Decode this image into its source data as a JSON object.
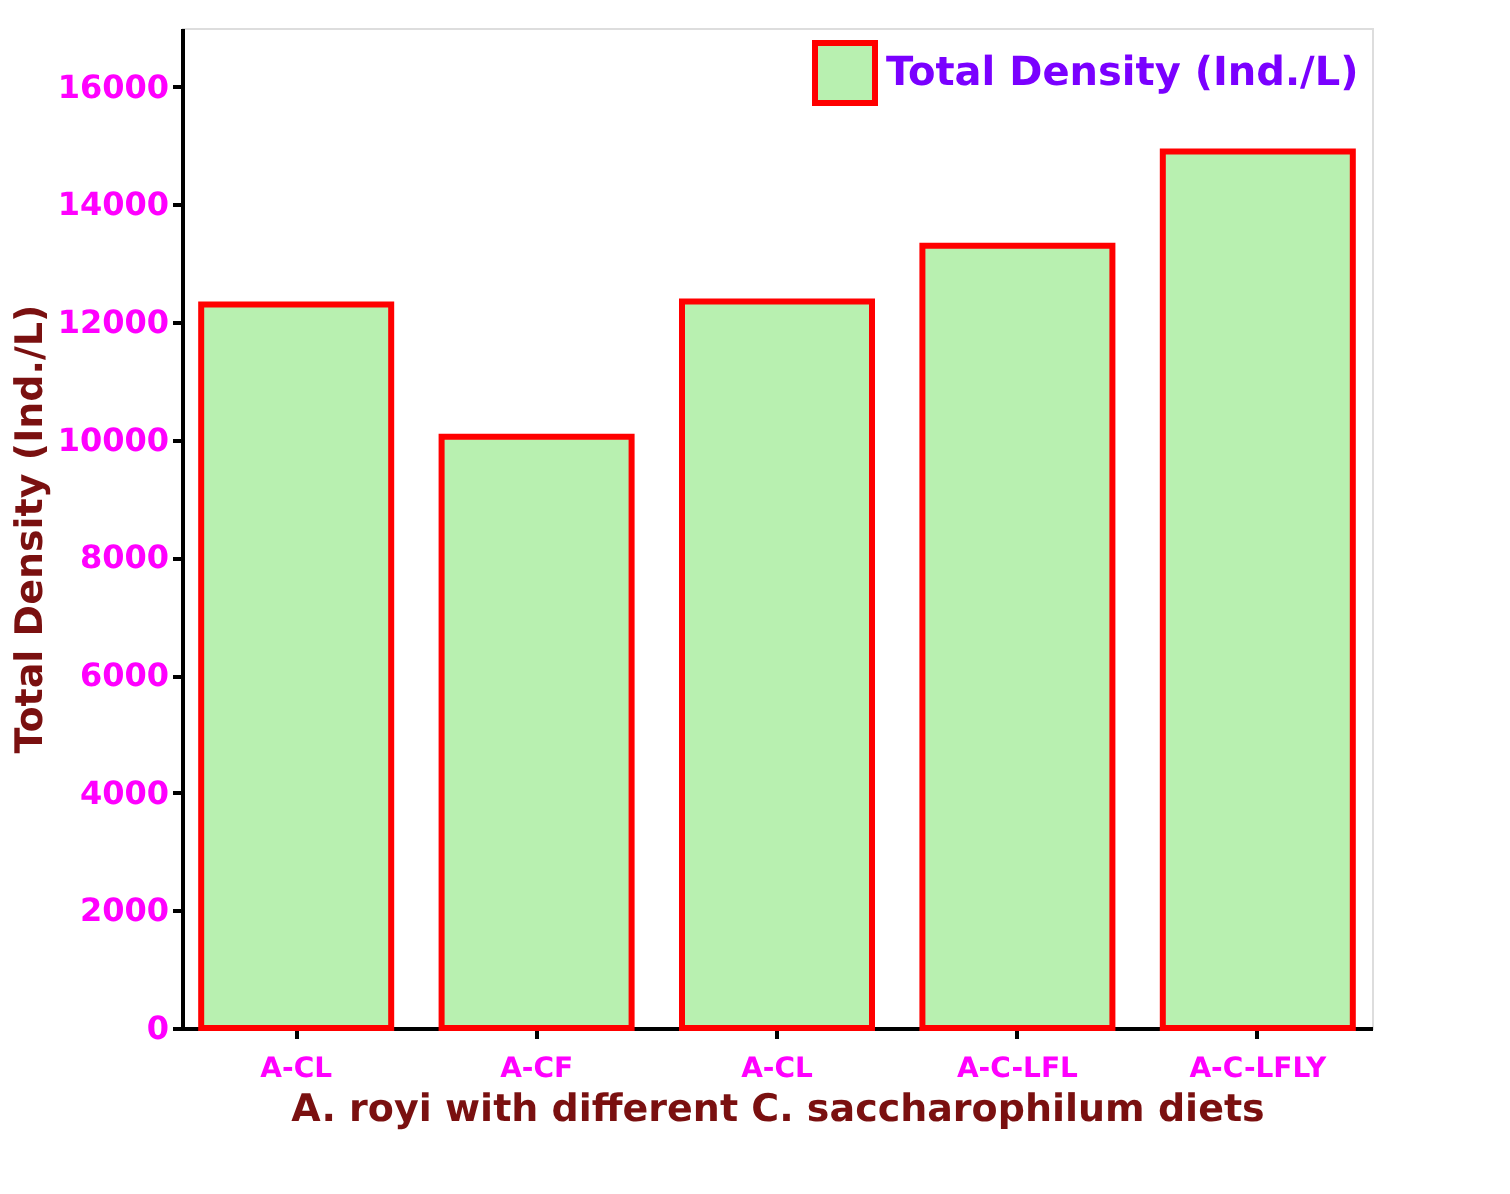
{
  "chart_data": {
    "type": "bar",
    "xlabel": "A. royi with different C. saccharophilum diets",
    "ylabel": "Total Density (Ind./L)",
    "categories": [
      "A-CL",
      "A-CF",
      "A-CL",
      "A-C-LFL",
      "A-C-LFLY"
    ],
    "series": [
      {
        "name": "Total Density (Ind./L)",
        "color": "#b8f0b0",
        "values": [
          12300,
          10050,
          12350,
          13300,
          14900
        ]
      }
    ],
    "ylim": [
      0,
      17000
    ],
    "yticks": [
      0,
      2000,
      4000,
      6000,
      8000,
      10000,
      12000,
      14000,
      16000
    ],
    "grid": false,
    "legend": "top right"
  }
}
